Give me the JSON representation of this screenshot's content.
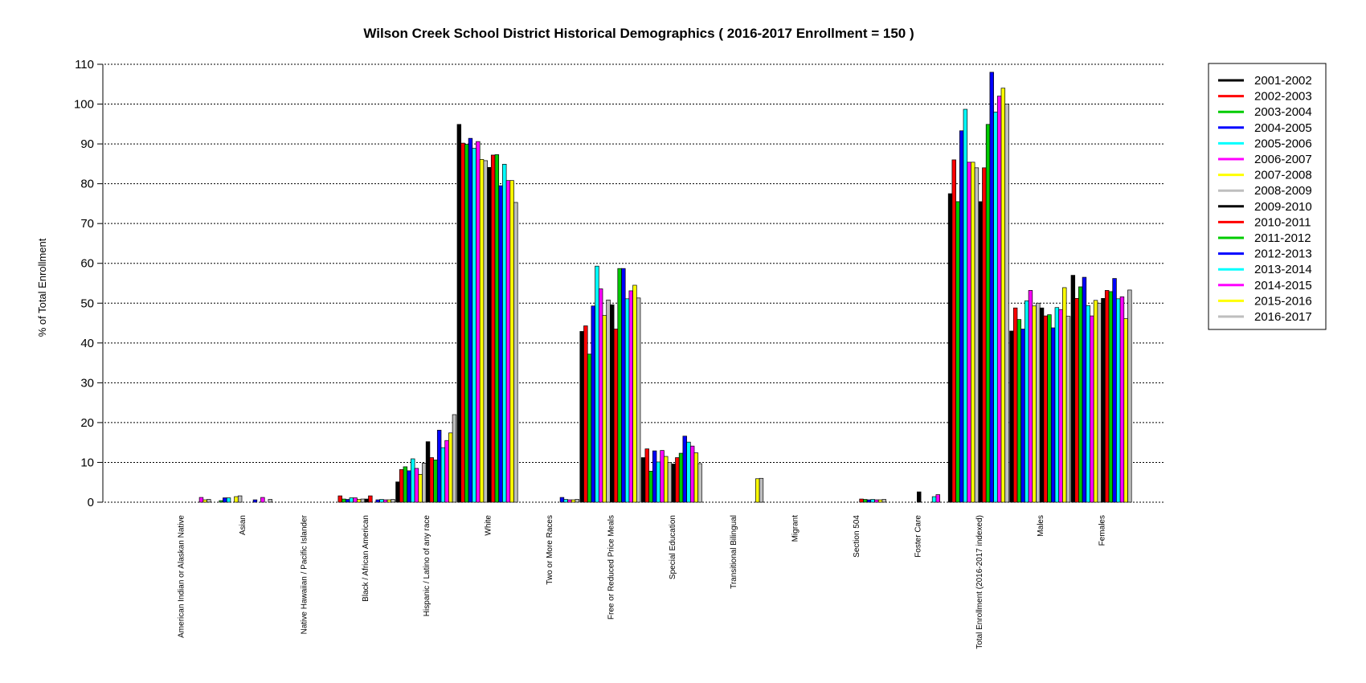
{
  "chart_data": {
    "type": "bar",
    "title": "Wilson Creek School District Historical Demographics  ( 2016-2017 Enrollment =  150 )",
    "xlabel": "",
    "ylabel": "% of Total Enrollment",
    "ylim": [
      0,
      110
    ],
    "yticks": [
      0,
      10,
      20,
      30,
      40,
      50,
      60,
      70,
      80,
      90,
      100,
      110
    ],
    "grid": "horizontal dotted",
    "legend_position": "top-right",
    "categories": [
      "American Indian or Alaskan Native",
      "Asian",
      "Native Hawaiian / Pacific Islander",
      "Black / African American",
      "Hispanic / Latino of any race",
      "White",
      "Two or More Races",
      "Free or Reduced Price Meals",
      "Special Education",
      "Transitional Bilingual",
      "Migrant",
      "Section 504",
      "Foster Care",
      "Total Enrollment (2016-2017 indexed)",
      "Males",
      "Females"
    ],
    "series": [
      {
        "name": "2001-2002",
        "color": "#000000",
        "values": [
          0,
          0,
          0,
          0,
          5.1,
          94.9,
          0,
          42.9,
          11.2,
          0,
          0,
          0,
          0,
          77.5,
          43,
          57
        ]
      },
      {
        "name": "2002-2003",
        "color": "#ff0000",
        "values": [
          0,
          0,
          0,
          1.6,
          8.2,
          90.2,
          0,
          44.3,
          13.4,
          0,
          0,
          0,
          0,
          86.0,
          48.8,
          51.2
        ]
      },
      {
        "name": "2003-2004",
        "color": "#00cc00",
        "values": [
          0,
          0.4,
          0,
          0.8,
          8.9,
          89.9,
          0,
          37.2,
          7.8,
          0,
          0,
          0,
          0,
          75.5,
          45.9,
          54.1
        ]
      },
      {
        "name": "2004-2005",
        "color": "#0000ff",
        "values": [
          0,
          1.1,
          0,
          0.7,
          7.9,
          91.4,
          0,
          49.3,
          12.9,
          0,
          0,
          0,
          0,
          93.3,
          43.5,
          56.5
        ]
      },
      {
        "name": "2005-2006",
        "color": "#00ffff",
        "values": [
          0,
          1.1,
          0,
          1.1,
          10.9,
          88.9,
          0,
          59.3,
          10.1,
          0,
          0,
          0,
          0,
          98.7,
          50.6,
          49.4
        ]
      },
      {
        "name": "2006-2007",
        "color": "#ff00ff",
        "values": [
          0,
          0,
          0,
          1.1,
          8.5,
          90.6,
          0,
          53.6,
          13.0,
          0,
          0,
          0,
          0,
          85.4,
          53.2,
          46.8
        ]
      },
      {
        "name": "2007-2008",
        "color": "#ffff00",
        "values": [
          0,
          1.4,
          0,
          0.7,
          7.0,
          86.1,
          0,
          46.9,
          11.5,
          0,
          0,
          0,
          0,
          85.4,
          49.3,
          50.7
        ]
      },
      {
        "name": "2008-2009",
        "color": "#bebebe",
        "values": [
          0,
          1.6,
          0,
          0.8,
          9.8,
          85.8,
          0,
          50.8,
          10.0,
          0,
          0,
          0,
          0,
          84.0,
          50,
          50
        ]
      },
      {
        "name": "2009-2010",
        "color": "#000000",
        "values": [
          0,
          0,
          0,
          0.8,
          15.2,
          84.1,
          0,
          49.6,
          9.6,
          0,
          0,
          0,
          2.6,
          75.5,
          48.8,
          51.2
        ]
      },
      {
        "name": "2010-2011",
        "color": "#ff0000",
        "values": [
          0,
          0,
          0,
          1.6,
          11.2,
          87.2,
          0,
          43.5,
          11.2,
          0,
          0,
          0.8,
          0,
          84.0,
          46.8,
          53.2
        ]
      },
      {
        "name": "2011-2012",
        "color": "#00cc00",
        "values": [
          0,
          0,
          0,
          0,
          10.6,
          87.3,
          0,
          58.7,
          12.3,
          0,
          0,
          0.7,
          0,
          94.9,
          47.1,
          52.9
        ]
      },
      {
        "name": "2012-2013",
        "color": "#0000ff",
        "values": [
          0,
          0.6,
          0,
          0.6,
          18.1,
          79.5,
          1.2,
          58.7,
          16.6,
          0,
          0,
          0.6,
          0,
          108.0,
          43.8,
          56.2
        ]
      },
      {
        "name": "2013-2014",
        "color": "#00ffff",
        "values": [
          0,
          0,
          0,
          0.7,
          13.7,
          84.9,
          0.7,
          51.1,
          15.1,
          0,
          0,
          0.7,
          1.4,
          98.0,
          48.9,
          51.1
        ]
      },
      {
        "name": "2014-2015",
        "color": "#ff00ff",
        "values": [
          1.2,
          1.2,
          0,
          0.6,
          15.5,
          80.8,
          0.6,
          53.1,
          14.1,
          0,
          0,
          0.6,
          1.9,
          102.0,
          48.4,
          51.6
        ]
      },
      {
        "name": "2015-2016",
        "color": "#ffff00",
        "values": [
          0.6,
          0,
          0,
          0.6,
          17.4,
          80.8,
          0.6,
          54.5,
          12.4,
          5.9,
          0,
          0.6,
          0,
          104.0,
          53.9,
          46.1
        ]
      },
      {
        "name": "2016-2017",
        "color": "#bebebe",
        "values": [
          0.7,
          0.7,
          0,
          0.7,
          22.0,
          75.3,
          0.7,
          51.3,
          9.7,
          6.0,
          0,
          0.7,
          0,
          100.0,
          46.7,
          53.3
        ]
      }
    ]
  }
}
